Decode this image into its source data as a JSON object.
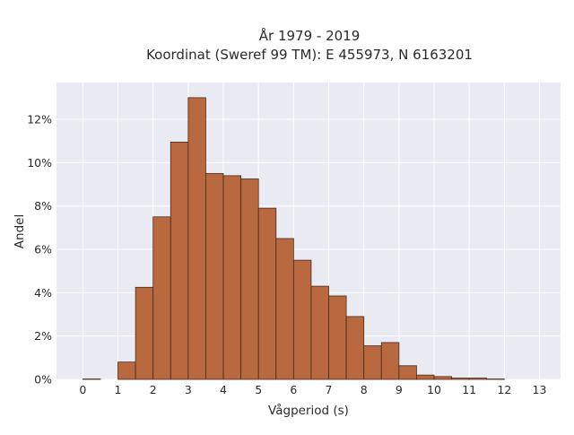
{
  "chart_data": {
    "type": "bar",
    "title_lines": [
      "År 1979 - 2019",
      "Koordinat (Sweref 99 TM): E 455973, N 6163201"
    ],
    "xlabel": "Vågperiod (s)",
    "ylabel": "Andel",
    "xlim": [
      -0.75,
      13.6
    ],
    "ylim": [
      0,
      13.7
    ],
    "xticks": [
      0,
      1,
      2,
      3,
      4,
      5,
      6,
      7,
      8,
      9,
      10,
      11,
      12,
      13
    ],
    "xtick_labels": [
      "0",
      "1",
      "2",
      "3",
      "4",
      "5",
      "6",
      "7",
      "8",
      "9",
      "10",
      "11",
      "12",
      "13"
    ],
    "yticks": [
      0,
      2,
      4,
      6,
      8,
      10,
      12
    ],
    "ytick_labels": [
      "0%",
      "2%",
      "4%",
      "6%",
      "8%",
      "10%",
      "12%"
    ],
    "bin_width": 0.5,
    "bin_starts": [
      0,
      0.5,
      1.0,
      1.5,
      2.0,
      2.5,
      3.0,
      3.5,
      4.0,
      4.5,
      5.0,
      5.5,
      6.0,
      6.5,
      7.0,
      7.5,
      8.0,
      8.5,
      9.0,
      9.5,
      10.0,
      10.5,
      11.0,
      11.5
    ],
    "values": [
      0.02,
      0,
      0.8,
      4.25,
      7.5,
      10.95,
      13.0,
      9.5,
      9.4,
      9.25,
      7.9,
      6.5,
      5.5,
      4.3,
      3.85,
      2.9,
      1.55,
      1.7,
      0.63,
      0.2,
      0.13,
      0.06,
      0.06,
      0.02
    ],
    "grid": true,
    "colors": {
      "bar_fill": "#b8693f",
      "bar_edge": "#4a2a1a",
      "plot_background": "#eaeaf2",
      "grid": "#ffffff"
    }
  }
}
